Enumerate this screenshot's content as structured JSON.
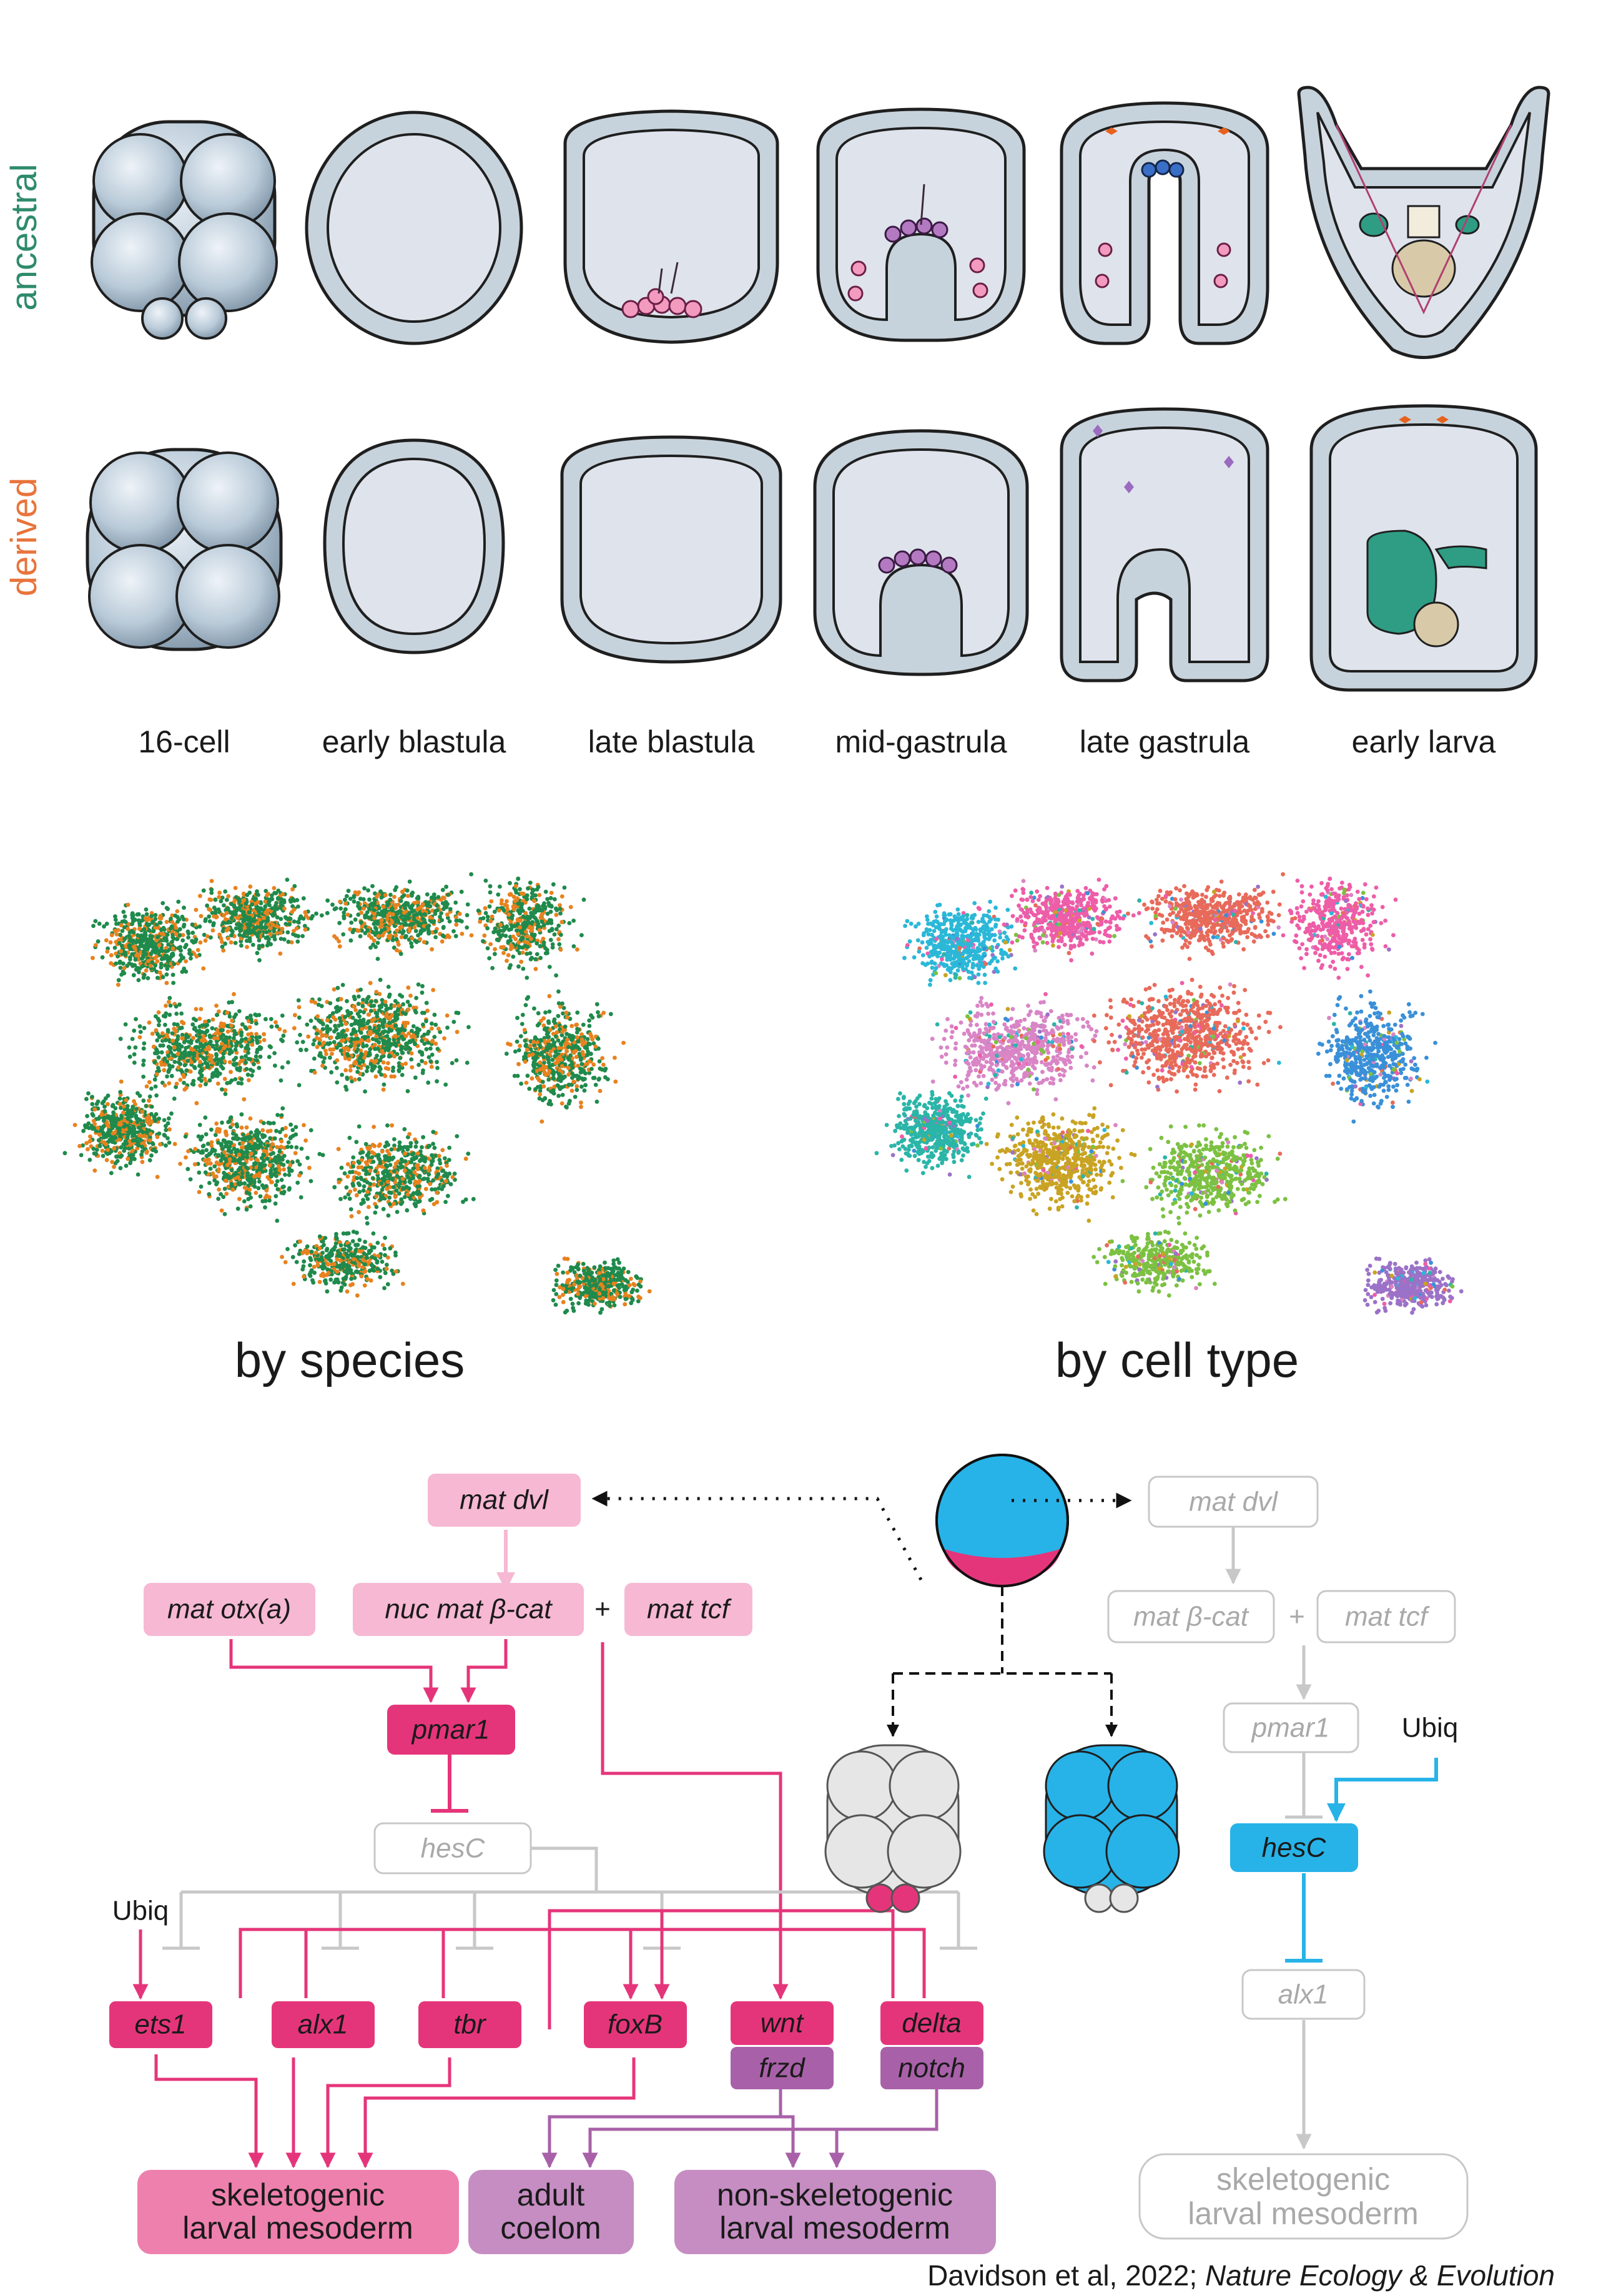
{
  "rows": {
    "ancestral": {
      "label": "ancestral",
      "color": "#2e8b6a"
    },
    "derived": {
      "label": "derived",
      "color": "#e8743b"
    }
  },
  "stages": [
    "16-cell",
    "early blastula",
    "late blastula",
    "mid-gastrula",
    "late gastrula",
    "early larva"
  ],
  "umap": {
    "species_title": "by species",
    "celltype_title": "by cell type",
    "species_colors": [
      "#1f8a4c",
      "#e8821e"
    ],
    "celltype_colors": [
      "#2bb8d8",
      "#e86a5a",
      "#7cc142",
      "#d985c6",
      "#3a90d8",
      "#2bb5a8",
      "#c9a323",
      "#9b72c8",
      "#ee5da8"
    ]
  },
  "grn": {
    "ancestral_side": {
      "mat_dvl": "mat dvl",
      "mat_otxa": "mat otx(a)",
      "nuc_mat_bcat": "nuc mat β-cat",
      "plus": "+",
      "mat_tcf": "mat tcf",
      "pmar1": "pmar1",
      "hesC": "hesC",
      "ubiq": "Ubiq",
      "ets1": "ets1",
      "alx1": "alx1",
      "tbr": "tbr",
      "foxB": "foxB",
      "wnt": "wnt",
      "frzd": "frzd",
      "delta": "delta",
      "notch": "notch",
      "fate_skel_1": "skeletogenic",
      "fate_skel_2": "larval mesoderm",
      "fate_adult_1": "adult",
      "fate_adult_2": "coelom",
      "fate_nonskel_1": "non-skeletogenic",
      "fate_nonskel_2": "larval mesoderm"
    },
    "derived_side": {
      "mat_dvl": "mat dvl",
      "mat_bcat": "mat β-cat",
      "plus": "+",
      "mat_tcf": "mat tcf",
      "pmar1": "pmar1",
      "ubiq": "Ubiq",
      "hesC": "hesC",
      "alx1": "alx1",
      "fate_skel_1": "skeletogenic",
      "fate_skel_2": "larval mesoderm"
    },
    "colors": {
      "magenta": "#e5357a",
      "pink_light": "#f6b8d3",
      "pink_mid": "#ee80ae",
      "purple": "#a861a8",
      "purple_light": "#c58dc2",
      "cyan": "#27b3e8",
      "grey": "#c8c8c8",
      "grey_text": "#a9a9a9"
    }
  },
  "citation": {
    "authors": "Davidson et al, 2022; ",
    "journal": "Nature Ecology & Evolution"
  }
}
